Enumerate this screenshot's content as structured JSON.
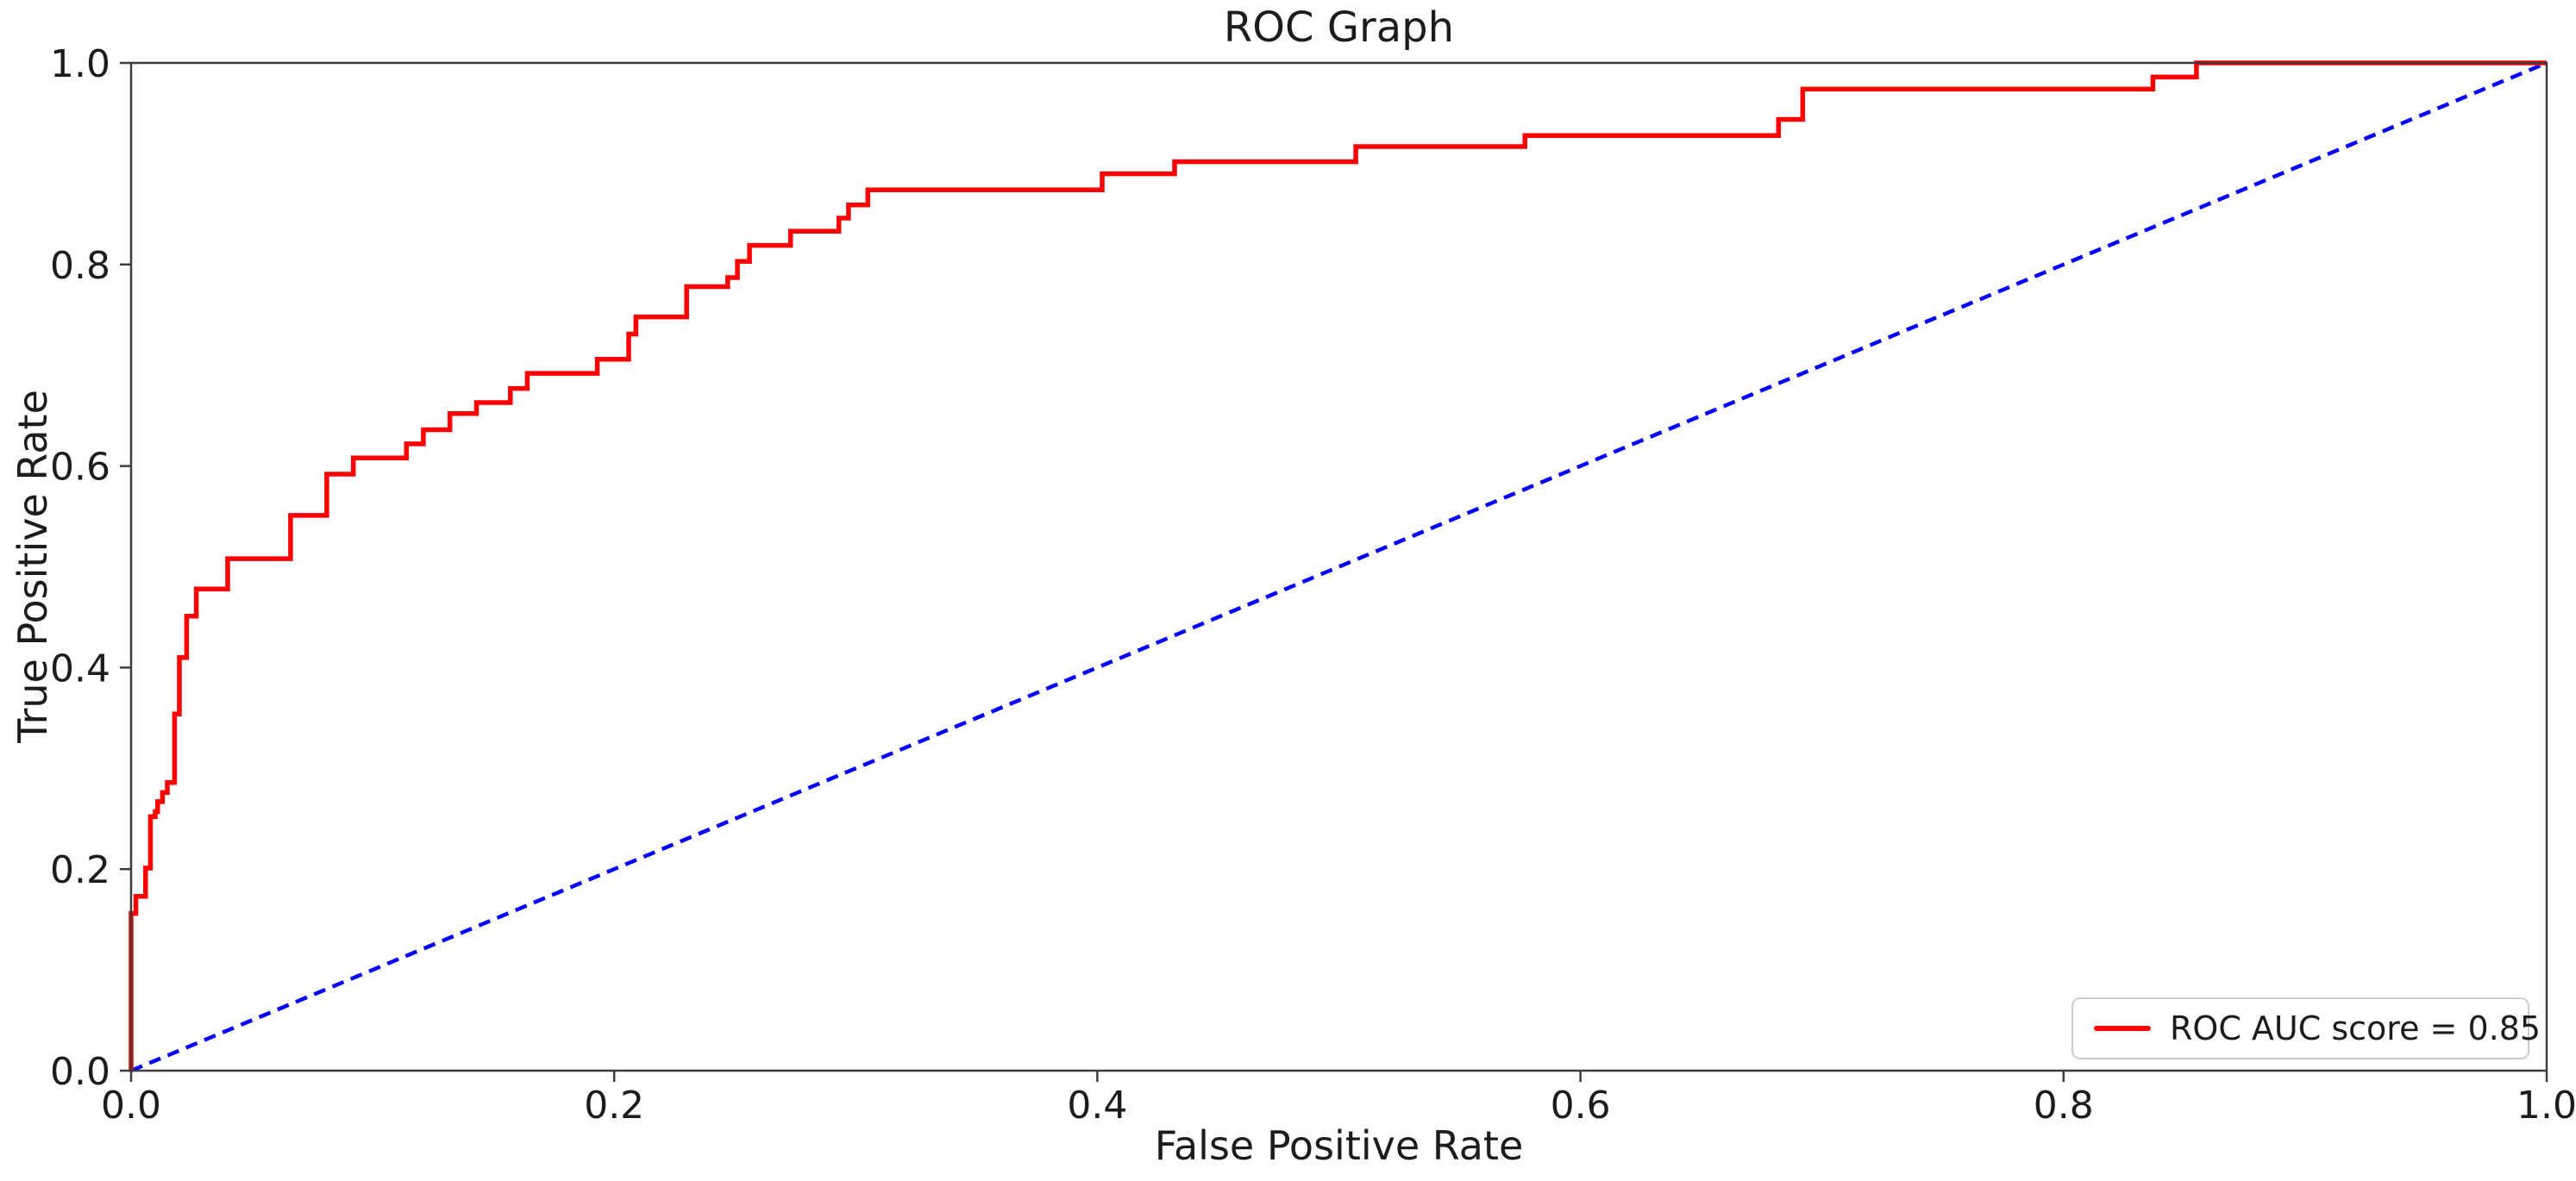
{
  "chart_data": {
    "type": "line",
    "title": "ROC Graph",
    "xlabel": "False Positive Rate",
    "ylabel": "True Positive Rate",
    "xlim": [
      0.0,
      1.0
    ],
    "ylim": [
      0.0,
      1.0
    ],
    "grid": false,
    "x_ticks": [
      "0.0",
      "0.2",
      "0.4",
      "0.6",
      "0.8",
      "1.0"
    ],
    "y_ticks": [
      "0.0",
      "0.2",
      "0.4",
      "0.6",
      "0.8",
      "1.0"
    ],
    "colors": {
      "roc_curve": "#ff0000",
      "chance_line": "#0000ff",
      "spine": "#3c3c3c",
      "text": "#1c1c1c",
      "legend_border": "#cccccc"
    },
    "legend": {
      "position": "lower right",
      "entries": [
        {
          "label": "ROC AUC score = 0.85",
          "color": "#ff0000",
          "style": "solid"
        }
      ]
    },
    "series": [
      {
        "name": "roc-curve",
        "color": "#ff0000",
        "style": "solid",
        "line_width": 5.5,
        "points": [
          [
            0.0,
            0.0
          ],
          [
            0.0,
            0.156
          ],
          [
            0.002,
            0.156
          ],
          [
            0.002,
            0.173
          ],
          [
            0.006,
            0.173
          ],
          [
            0.006,
            0.201
          ],
          [
            0.008,
            0.201
          ],
          [
            0.008,
            0.252
          ],
          [
            0.01,
            0.252
          ],
          [
            0.01,
            0.257
          ],
          [
            0.011,
            0.257
          ],
          [
            0.011,
            0.267
          ],
          [
            0.013,
            0.267
          ],
          [
            0.013,
            0.276
          ],
          [
            0.015,
            0.276
          ],
          [
            0.015,
            0.286
          ],
          [
            0.018,
            0.286
          ],
          [
            0.018,
            0.354
          ],
          [
            0.02,
            0.354
          ],
          [
            0.02,
            0.41
          ],
          [
            0.023,
            0.41
          ],
          [
            0.023,
            0.451
          ],
          [
            0.027,
            0.451
          ],
          [
            0.027,
            0.478
          ],
          [
            0.04,
            0.478
          ],
          [
            0.04,
            0.508
          ],
          [
            0.066,
            0.508
          ],
          [
            0.066,
            0.551
          ],
          [
            0.081,
            0.551
          ],
          [
            0.081,
            0.592
          ],
          [
            0.092,
            0.592
          ],
          [
            0.092,
            0.608
          ],
          [
            0.114,
            0.608
          ],
          [
            0.114,
            0.622
          ],
          [
            0.121,
            0.622
          ],
          [
            0.121,
            0.636
          ],
          [
            0.132,
            0.636
          ],
          [
            0.132,
            0.652
          ],
          [
            0.143,
            0.652
          ],
          [
            0.143,
            0.663
          ],
          [
            0.157,
            0.663
          ],
          [
            0.157,
            0.677
          ],
          [
            0.164,
            0.677
          ],
          [
            0.164,
            0.692
          ],
          [
            0.193,
            0.692
          ],
          [
            0.193,
            0.706
          ],
          [
            0.206,
            0.706
          ],
          [
            0.206,
            0.731
          ],
          [
            0.209,
            0.731
          ],
          [
            0.209,
            0.748
          ],
          [
            0.23,
            0.748
          ],
          [
            0.23,
            0.778
          ],
          [
            0.247,
            0.778
          ],
          [
            0.247,
            0.787
          ],
          [
            0.251,
            0.787
          ],
          [
            0.251,
            0.803
          ],
          [
            0.256,
            0.803
          ],
          [
            0.256,
            0.819
          ],
          [
            0.273,
            0.819
          ],
          [
            0.273,
            0.833
          ],
          [
            0.293,
            0.833
          ],
          [
            0.293,
            0.846
          ],
          [
            0.297,
            0.846
          ],
          [
            0.297,
            0.859
          ],
          [
            0.305,
            0.859
          ],
          [
            0.305,
            0.874
          ],
          [
            0.402,
            0.874
          ],
          [
            0.402,
            0.89
          ],
          [
            0.432,
            0.89
          ],
          [
            0.432,
            0.902
          ],
          [
            0.507,
            0.902
          ],
          [
            0.507,
            0.917
          ],
          [
            0.577,
            0.917
          ],
          [
            0.577,
            0.928
          ],
          [
            0.682,
            0.928
          ],
          [
            0.682,
            0.944
          ],
          [
            0.692,
            0.944
          ],
          [
            0.692,
            0.974
          ],
          [
            0.837,
            0.974
          ],
          [
            0.837,
            0.986
          ],
          [
            0.855,
            0.986
          ],
          [
            0.855,
            1.0
          ],
          [
            1.0,
            1.0
          ]
        ]
      },
      {
        "name": "chance-diagonal",
        "color": "#0000ff",
        "style": "dashed",
        "line_width": 4.5,
        "points": [
          [
            0.0,
            0.0
          ],
          [
            1.0,
            1.0
          ]
        ]
      }
    ]
  }
}
